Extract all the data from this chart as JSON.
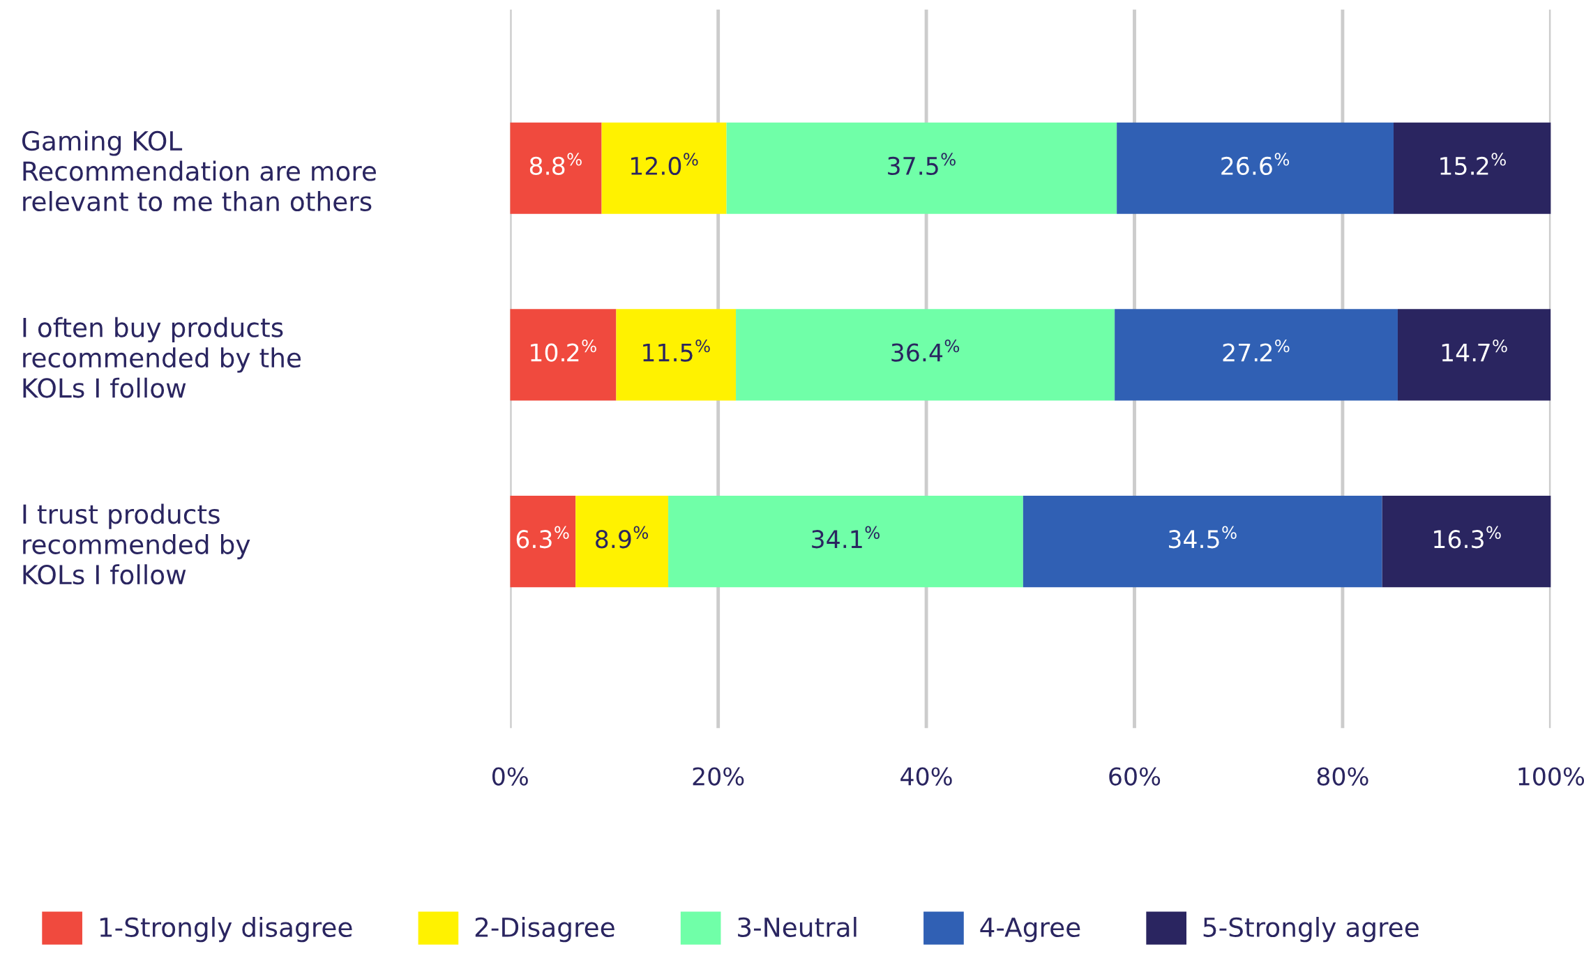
{
  "chart_data": {
    "type": "bar",
    "orientation": "horizontal",
    "stacked": true,
    "categories": [
      "Gaming KOL\nRecommendation are more\nrelevant to me than others",
      "I often buy products\nrecommended by the\nKOLs I follow",
      "I trust products\nrecommended by\nKOLs I follow"
    ],
    "series": [
      {
        "name": "1-Strongly disagree",
        "color": "#f04a3e",
        "values": [
          8.8,
          10.2,
          6.3
        ],
        "value_labels": [
          "8.8$^{%}$",
          "10.2$^{%}$",
          "6.3$^{%}$"
        ]
      },
      {
        "name": "2-Disagree",
        "color": "#fff200",
        "values": [
          12.0,
          11.5,
          8.9
        ],
        "value_labels": [
          "12.0$^{%}$",
          "11.5$^{%}$",
          "8.9$^{%}$"
        ]
      },
      {
        "name": "3-Neutral",
        "color": "#70ffa8",
        "values": [
          37.5,
          36.4,
          34.1
        ],
        "value_labels": [
          "37.5$^{%}$",
          "36.4$^{%}$",
          "34.1$^{%}$"
        ]
      },
      {
        "name": "4-Agree",
        "color": "#3060b4",
        "values": [
          26.6,
          27.2,
          34.5
        ],
        "value_labels": [
          "26.6$^{%}$",
          "27.2$^{%}$",
          "34.5$^{%}$"
        ]
      },
      {
        "name": "5-Strongly agree",
        "color": "#2a2560",
        "values": [
          15.2,
          14.7,
          16.3
        ],
        "value_labels": [
          "15.2$^{%}$",
          "14.7$^{%}$",
          "16.3$^{%}$"
        ]
      }
    ],
    "xlim": [
      0,
      100
    ],
    "xticks": [
      {
        "value": 0,
        "label": "0%"
      },
      {
        "value": 20,
        "label": "20%"
      },
      {
        "value": 40,
        "label": "40%"
      },
      {
        "value": 60,
        "label": "60%"
      },
      {
        "value": 80,
        "label": "80%"
      },
      {
        "value": 100,
        "label": "100%"
      }
    ],
    "grid": "x",
    "legend": "bottom"
  }
}
